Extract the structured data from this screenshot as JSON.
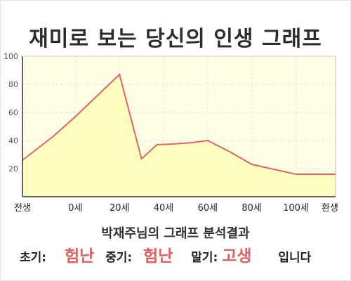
{
  "title": "재미로 보는 당신의 인생 그래프",
  "summary": "박재주님의 그래프 분석결과",
  "results": {
    "early_label": "초기:",
    "early_value": "험난",
    "mid_label": "중기:",
    "mid_value": "험난",
    "late_label": "말기:",
    "late_value": "고생",
    "suffix": "입니다"
  },
  "colors": {
    "plot_bg": "#ffffe6",
    "area_fill": "#ffffc0",
    "line": "#e06666",
    "highlight": "#e06060"
  },
  "chart_data": {
    "type": "area",
    "title": "재미로 보는 당신의 인생 그래프",
    "x_ticks": [
      "전생",
      "0세",
      "20세",
      "40세",
      "60세",
      "80세",
      "100세",
      "환생"
    ],
    "x_tick_values": [
      -24,
      0,
      20,
      40,
      60,
      80,
      100,
      118
    ],
    "y_ticks": [
      20,
      40,
      60,
      80,
      100
    ],
    "ylim": [
      0,
      100
    ],
    "grid": true,
    "series": [
      {
        "x": [
          -24,
          -10,
          0,
          20,
          30,
          37,
          44,
          53,
          60,
          70,
          80,
          100,
          118
        ],
        "y": [
          26,
          43,
          57,
          87,
          27,
          37,
          37.5,
          38.5,
          40,
          32,
          23,
          16,
          16
        ]
      }
    ]
  }
}
